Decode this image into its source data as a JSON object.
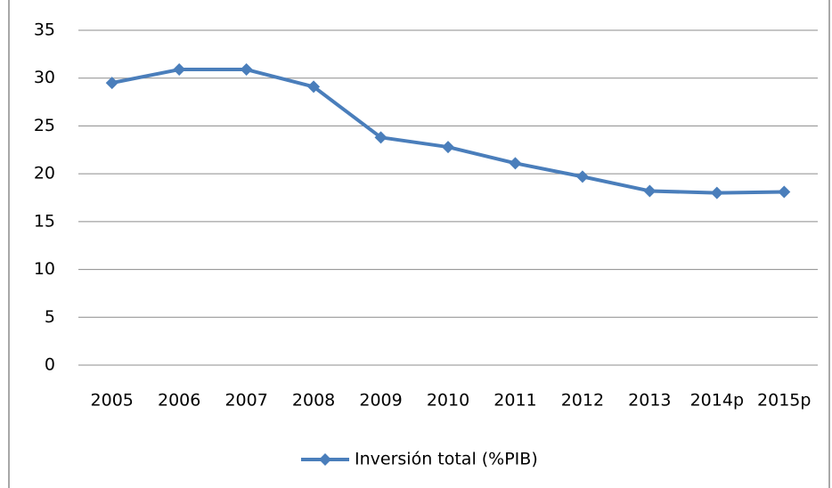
{
  "chart_data": {
    "type": "line",
    "categories": [
      "2005",
      "2006",
      "2007",
      "2008",
      "2009",
      "2010",
      "2011",
      "2012",
      "2013",
      "2014p",
      "2015p"
    ],
    "series": [
      {
        "name": "Inversión total (%PIB)",
        "color": "#4a7ebb",
        "values": [
          29.5,
          30.9,
          30.9,
          29.1,
          23.8,
          22.8,
          21.1,
          19.7,
          18.2,
          18.0,
          18.1
        ]
      }
    ],
    "ylim": [
      0,
      35
    ],
    "yticks": [
      0,
      5,
      10,
      15,
      20,
      25,
      30,
      35
    ],
    "grid": true,
    "legend": "bottom"
  }
}
